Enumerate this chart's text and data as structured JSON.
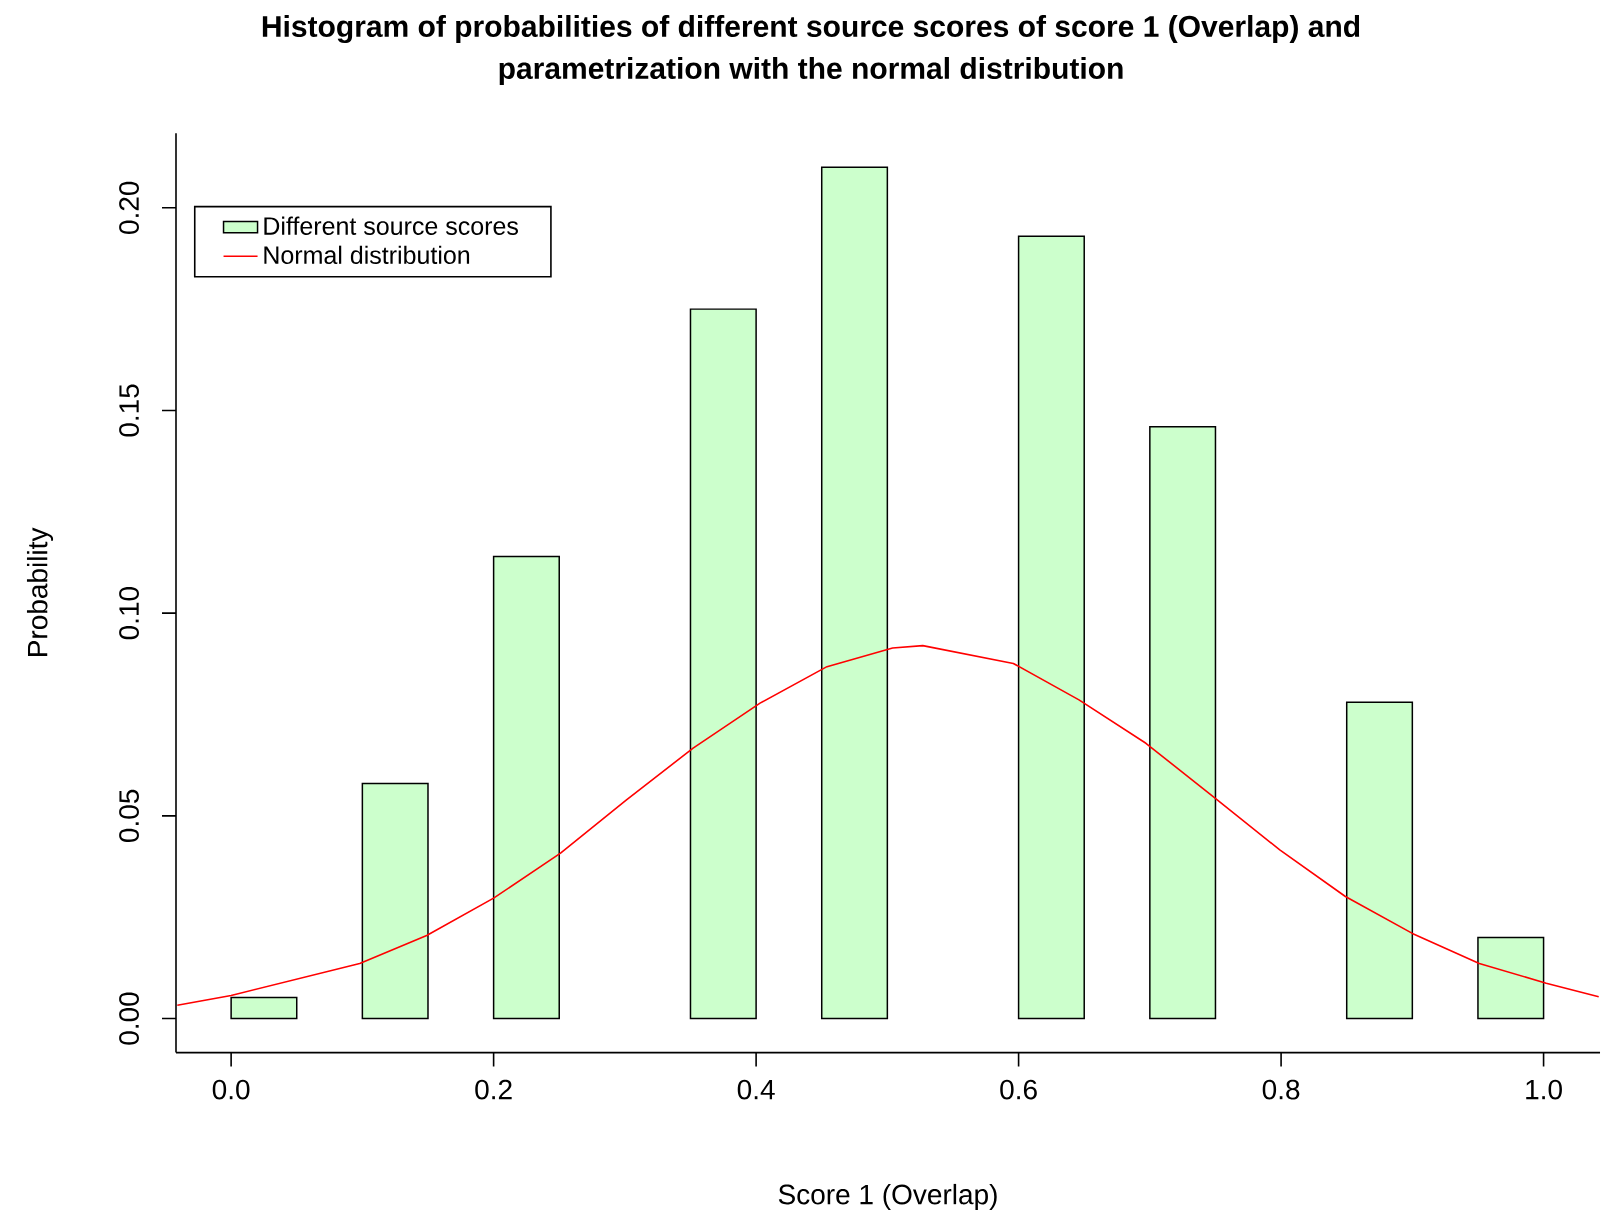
{
  "chart_data": {
    "type": "histogram",
    "title": "Histogram of probabilities of different source scores of score 1 (Overlap) and parametrization with the normal distribution",
    "xlabel": "Score 1 (Overlap)",
    "ylabel": "Probability",
    "xlim": [
      -0.042,
      1.043
    ],
    "ylim": [
      -0.0084,
      0.2184
    ],
    "xticks": [
      {
        "value": 0,
        "label": "0.0"
      },
      0.2,
      0.4,
      0.6,
      0.8,
      {
        "value": 1,
        "label": "1.0"
      }
    ],
    "yticks": [
      {
        "value": 0,
        "label": "0.00"
      },
      0.05,
      {
        "value": 0.1,
        "label": "0.10"
      },
      0.15,
      {
        "value": 0.2,
        "label": "0.20"
      }
    ],
    "legend": "top left",
    "series": [
      {
        "name": "Different source scores",
        "color": "#ccffcc",
        "bins": [
          0,
          0.05,
          0.1,
          0.15,
          0.2,
          0.25,
          0.3,
          0.35,
          0.4,
          0.45,
          0.5,
          0.55,
          0.6,
          0.65,
          0.7,
          0.75,
          0.8,
          0.85,
          0.9,
          0.95,
          1.0
        ],
        "values": [
          0.0052,
          0,
          0.058,
          0,
          0.114,
          0,
          0,
          0.175,
          0,
          0.21,
          0,
          0,
          0.193,
          0,
          0.146,
          0,
          0,
          0.078,
          0,
          0.02
        ]
      },
      {
        "type": "line",
        "name": "Normal distribution",
        "color": "#ff0000",
        "x": [
          -0.041,
          0,
          0.098,
          0.149,
          0.2,
          0.251,
          0.301,
          0.352,
          0.403,
          0.454,
          0.504,
          0.527,
          0.596,
          0.646,
          0.697,
          0.748,
          0.799,
          0.849,
          0.9,
          0.951,
          1.002,
          1.042
        ],
        "values": [
          0.0033,
          0.0057,
          0.0136,
          0.0205,
          0.0297,
          0.0408,
          0.0539,
          0.0667,
          0.0778,
          0.0868,
          0.0914,
          0.092,
          0.0876,
          0.0786,
          0.0679,
          0.0548,
          0.0416,
          0.0301,
          0.021,
          0.0136,
          0.0087,
          0.0054
        ]
      }
    ]
  }
}
